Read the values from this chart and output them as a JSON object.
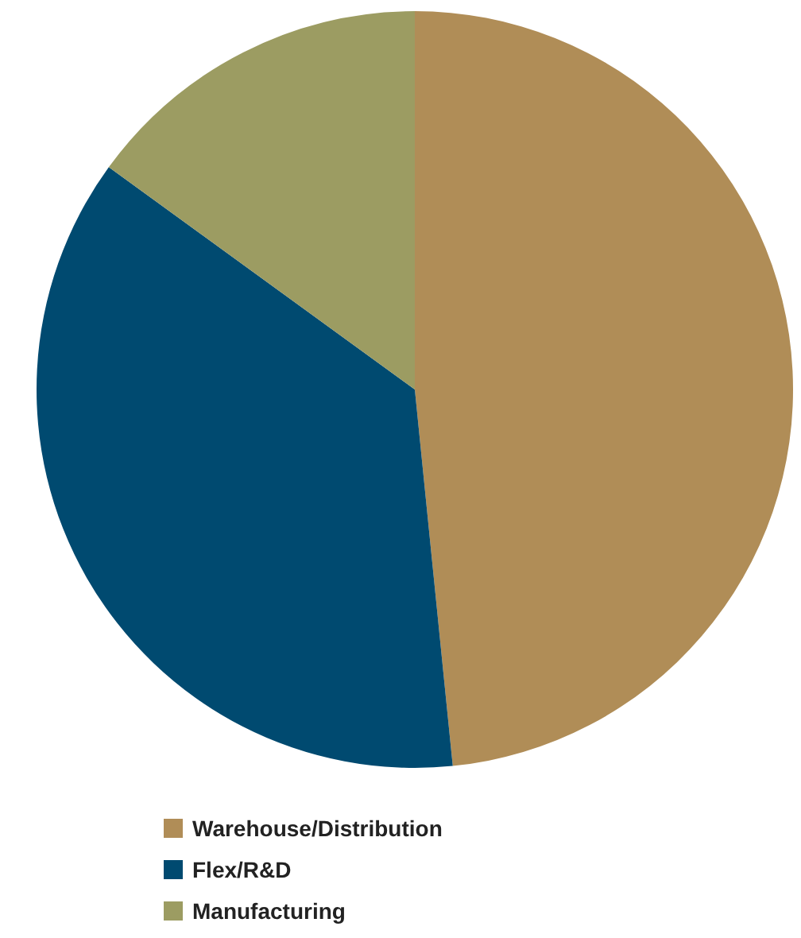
{
  "chart_data": {
    "type": "pie",
    "categories": [
      "Warehouse/Distribution",
      "Flex/R&D",
      "Manufacturing"
    ],
    "values": [
      48.4,
      36.6,
      15
    ],
    "colors": [
      "#b08d57",
      "#004a70",
      "#9c9c62"
    ],
    "legend": "bottom"
  }
}
